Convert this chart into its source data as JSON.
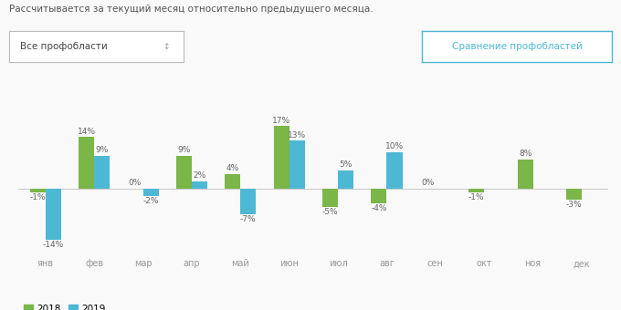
{
  "title": "Рассчитывается за текущий месяц относительно предыдущего месяца.",
  "dropdown_label": "Все профобласти",
  "button_label": "Сравнение профобластей",
  "months": [
    "янв",
    "фев",
    "мар",
    "апр",
    "май",
    "июн",
    "июл",
    "авг",
    "сен",
    "окт",
    "ноя",
    "дек"
  ],
  "values_2018": [
    -1,
    14,
    0,
    9,
    4,
    17,
    -5,
    -4,
    0,
    -1,
    8,
    -3
  ],
  "values_2019": [
    -14,
    9,
    -2,
    2,
    -7,
    13,
    5,
    10,
    null,
    null,
    null,
    null
  ],
  "color_2018": "#7ab648",
  "color_2019": "#4db8d4",
  "bar_width": 0.32,
  "ylim": [
    -18,
    21
  ],
  "background_color": "#f9f9f9",
  "legend_2018": "2018",
  "legend_2019": "2019",
  "label_fontsize": 6.5,
  "axis_fontsize": 7,
  "title_fontsize": 7.5,
  "dropdown_fontsize": 7.5,
  "button_fontsize": 7.5
}
